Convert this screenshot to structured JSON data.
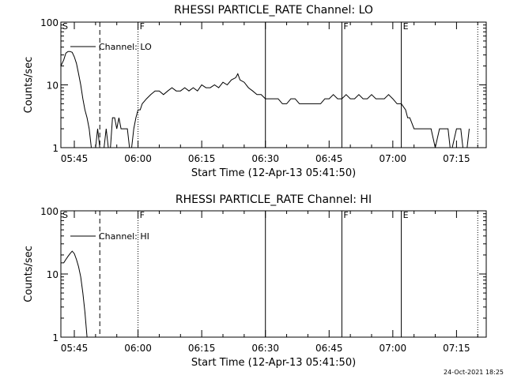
{
  "chart_data": [
    {
      "type": "line",
      "title": "RHESSI PARTICLE_RATE Channel: LO",
      "xlabel": "Start Time (12-Apr-13 05:41:50)",
      "ylabel": "Counts/sec",
      "yscale": "log",
      "ylim": [
        1,
        100
      ],
      "xlim": [
        "05:41:50",
        "07:22:00"
      ],
      "y_ticks": [
        "1",
        "10",
        "100"
      ],
      "x_ticks": [
        "05:45",
        "06:00",
        "06:15",
        "06:30",
        "06:45",
        "07:00",
        "07:15"
      ],
      "grid": false,
      "legend": "top-left",
      "series": [
        {
          "name": "Channel: LO",
          "x": [
            "05:41:50",
            "05:42:30",
            "05:43:00",
            "05:43:30",
            "05:44:00",
            "05:44:30",
            "05:45:00",
            "05:45:30",
            "05:46:00",
            "05:46:30",
            "05:47:00",
            "05:47:30",
            "05:48:00",
            "05:48:30",
            "05:49:00",
            "05:49:30",
            "05:50:00",
            "05:50:30",
            "05:51:00",
            "05:51:30",
            "05:52:00",
            "05:52:30",
            "05:53:00",
            "05:53:30",
            "05:54:00",
            "05:54:30",
            "05:55:00",
            "05:55:30",
            "05:56:00",
            "05:56:30",
            "05:57:00",
            "05:57:30",
            "05:58:00",
            "05:58:30",
            "05:59:00",
            "05:59:30",
            "06:00:00",
            "06:00:30",
            "06:01:00",
            "06:02:00",
            "06:03:00",
            "06:04:00",
            "06:05:00",
            "06:06:00",
            "06:07:00",
            "06:08:00",
            "06:09:00",
            "06:10:00",
            "06:11:00",
            "06:12:00",
            "06:13:00",
            "06:14:00",
            "06:15:00",
            "06:16:00",
            "06:17:00",
            "06:18:00",
            "06:19:00",
            "06:20:00",
            "06:21:00",
            "06:22:00",
            "06:23:00",
            "06:23:30",
            "06:24:00",
            "06:25:00",
            "06:26:00",
            "06:27:00",
            "06:28:00",
            "06:29:00",
            "06:30:00",
            "06:31:00",
            "06:32:00",
            "06:33:00",
            "06:34:00",
            "06:35:00",
            "06:36:00",
            "06:37:00",
            "06:38:00",
            "06:39:00",
            "06:40:00",
            "06:41:00",
            "06:42:00",
            "06:43:00",
            "06:44:00",
            "06:45:00",
            "06:46:00",
            "06:47:00",
            "06:48:00",
            "06:49:00",
            "06:50:00",
            "06:51:00",
            "06:52:00",
            "06:53:00",
            "06:54:00",
            "06:55:00",
            "06:56:00",
            "06:57:00",
            "06:58:00",
            "06:59:00",
            "07:00:00",
            "07:01:00",
            "07:02:00",
            "07:03:00",
            "07:03:30",
            "07:04:00",
            "07:05:00",
            "07:06:00",
            "07:07:00",
            "07:08:00",
            "07:09:00",
            "07:10:00",
            "07:11:00",
            "07:12:00",
            "07:13:00",
            "07:13:30",
            "07:14:00",
            "07:15:00",
            "07:16:00",
            "07:16:30",
            "07:17:00",
            "07:17:30",
            "07:18:00"
          ],
          "values": [
            20,
            25,
            32,
            34,
            34,
            33,
            28,
            22,
            15,
            10,
            6,
            4,
            3,
            2,
            1,
            1,
            1,
            2,
            1,
            1,
            1,
            2,
            1,
            1,
            3,
            3,
            2,
            3,
            2,
            2,
            2,
            2,
            1,
            1,
            2,
            3,
            4,
            4,
            5,
            6,
            7,
            8,
            8,
            7,
            8,
            9,
            8,
            8,
            9,
            8,
            9,
            8,
            10,
            9,
            9,
            10,
            9,
            11,
            10,
            12,
            13,
            15,
            12,
            11,
            9,
            8,
            7,
            7,
            6,
            6,
            6,
            6,
            5,
            5,
            6,
            6,
            5,
            5,
            5,
            5,
            5,
            5,
            6,
            6,
            7,
            6,
            6,
            7,
            6,
            6,
            7,
            6,
            6,
            7,
            6,
            6,
            6,
            7,
            6,
            5,
            5,
            4,
            3,
            3,
            2,
            2,
            2,
            2,
            2,
            1,
            2,
            2,
            2,
            1,
            1,
            2,
            2,
            1,
            1,
            1,
            2
          ]
        }
      ],
      "markers": [
        {
          "label": "S",
          "time": "05:41:50",
          "style": "dotted"
        },
        {
          "label": "",
          "time": "05:51:00",
          "style": "dashed"
        },
        {
          "label": "F",
          "time": "06:00:00",
          "style": "dotted"
        },
        {
          "label": "",
          "time": "06:30:00",
          "style": "solid"
        },
        {
          "label": "F",
          "time": "06:48:00",
          "style": "solid"
        },
        {
          "label": "E",
          "time": "07:02:00",
          "style": "solid"
        },
        {
          "label": "",
          "time": "07:20:00",
          "style": "dotted"
        }
      ]
    },
    {
      "type": "line",
      "title": "RHESSI PARTICLE_RATE Channel: HI",
      "xlabel": "Start Time (12-Apr-13 05:41:50)",
      "ylabel": "Counts/sec",
      "yscale": "log",
      "ylim": [
        1,
        100
      ],
      "xlim": [
        "05:41:50",
        "07:22:00"
      ],
      "y_ticks": [
        "1",
        "10",
        "100"
      ],
      "x_ticks": [
        "05:45",
        "06:00",
        "06:15",
        "06:30",
        "06:45",
        "07:00",
        "07:15"
      ],
      "grid": false,
      "legend": "top-left",
      "series": [
        {
          "name": "Channel: HI",
          "x": [
            "05:41:50",
            "05:42:30",
            "05:43:00",
            "05:43:30",
            "05:44:00",
            "05:44:30",
            "05:45:00",
            "05:45:30",
            "05:46:00",
            "05:46:30",
            "05:47:00",
            "05:47:30",
            "05:48:00"
          ],
          "values": [
            15,
            15,
            17,
            19,
            21,
            23,
            21,
            17,
            13,
            9,
            5,
            2.5,
            1
          ]
        }
      ],
      "markers": [
        {
          "label": "S",
          "time": "05:41:50",
          "style": "dotted"
        },
        {
          "label": "",
          "time": "05:51:00",
          "style": "dashed"
        },
        {
          "label": "F",
          "time": "06:00:00",
          "style": "dotted"
        },
        {
          "label": "",
          "time": "06:30:00",
          "style": "solid"
        },
        {
          "label": "F",
          "time": "06:48:00",
          "style": "solid"
        },
        {
          "label": "E",
          "time": "07:02:00",
          "style": "solid"
        },
        {
          "label": "",
          "time": "07:20:00",
          "style": "dotted"
        }
      ]
    }
  ],
  "footer": {
    "timestamp": "24-Oct-2021 18:25"
  }
}
